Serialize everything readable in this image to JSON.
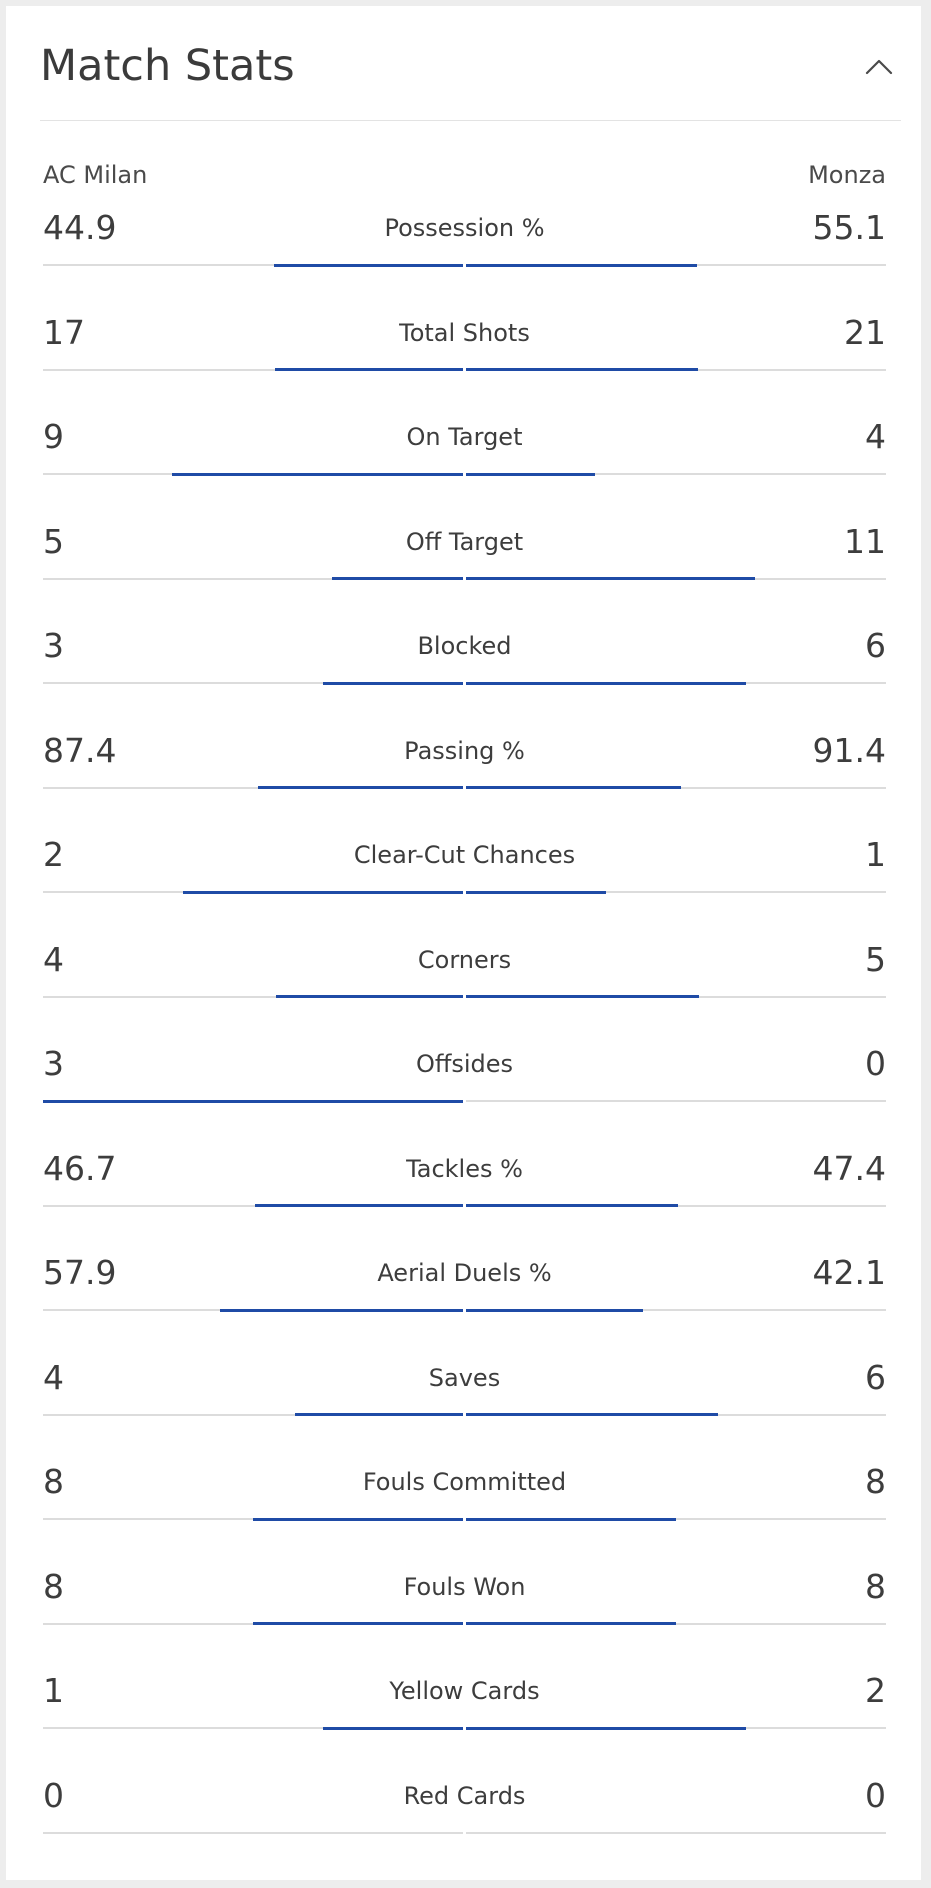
{
  "header": {
    "title": "Match Stats",
    "collapse_icon": "chevron-up-icon"
  },
  "teams": {
    "home": "AC Milan",
    "away": "Monza"
  },
  "colors": {
    "bar": "#1f4ba6",
    "track": "#dcdcdc",
    "text": "#3d3d3d"
  },
  "stats": [
    {
      "label": "Possession %",
      "home": "44.9",
      "away": "55.1"
    },
    {
      "label": "Total Shots",
      "home": "17",
      "away": "21"
    },
    {
      "label": "On Target",
      "home": "9",
      "away": "4"
    },
    {
      "label": "Off Target",
      "home": "5",
      "away": "11"
    },
    {
      "label": "Blocked",
      "home": "3",
      "away": "6"
    },
    {
      "label": "Passing %",
      "home": "87.4",
      "away": "91.4"
    },
    {
      "label": "Clear-Cut Chances",
      "home": "2",
      "away": "1"
    },
    {
      "label": "Corners",
      "home": "4",
      "away": "5"
    },
    {
      "label": "Offsides",
      "home": "3",
      "away": "0"
    },
    {
      "label": "Tackles %",
      "home": "46.7",
      "away": "47.4"
    },
    {
      "label": "Aerial Duels %",
      "home": "57.9",
      "away": "42.1"
    },
    {
      "label": "Saves",
      "home": "4",
      "away": "6"
    },
    {
      "label": "Fouls Committed",
      "home": "8",
      "away": "8"
    },
    {
      "label": "Fouls Won",
      "home": "8",
      "away": "8"
    },
    {
      "label": "Yellow Cards",
      "home": "1",
      "away": "2"
    },
    {
      "label": "Red Cards",
      "home": "0",
      "away": "0"
    }
  ]
}
